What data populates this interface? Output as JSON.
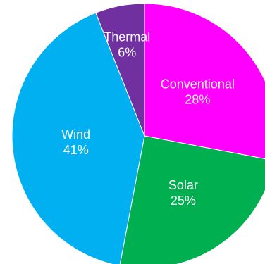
{
  "chart_data": {
    "type": "pie",
    "categories": [
      "Conventional",
      "Solar",
      "Wind",
      "Thermal"
    ],
    "values": [
      28,
      25,
      41,
      6
    ],
    "value_labels": [
      "28%",
      "25%",
      "41%",
      "6%"
    ],
    "colors": [
      "#FF00FF",
      "#00B050",
      "#00B0F0",
      "#7030A0"
    ],
    "start_at": "12 o'clock",
    "direction": "clockwise",
    "legend": "none",
    "labels_inside_slices": true
  }
}
